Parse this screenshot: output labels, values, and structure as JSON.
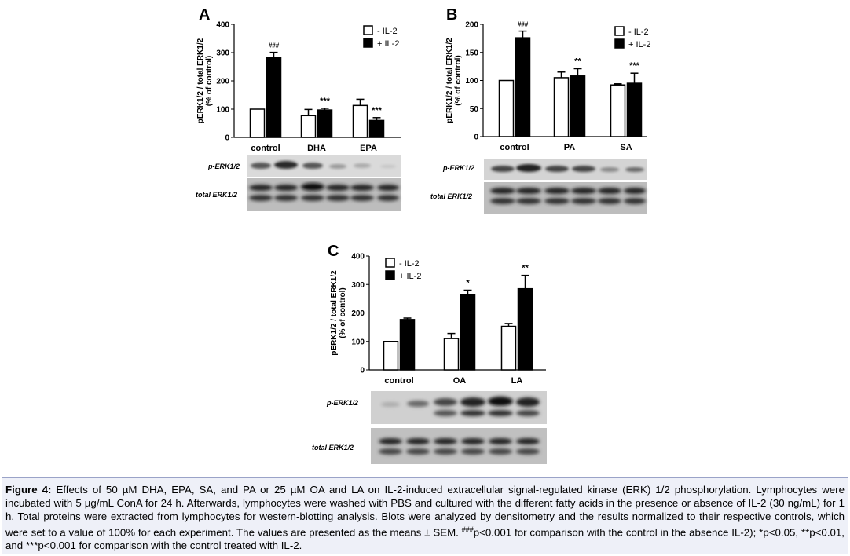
{
  "figure": {
    "legend_minus": "- IL-2",
    "legend_plus": "+ IL-2",
    "blot_labels": {
      "p": "p-ERK1/2",
      "total": "total  ERK1/2"
    }
  },
  "chart_data": [
    {
      "panel": "A",
      "type": "bar",
      "categories": [
        "control",
        "DHA",
        "EPA"
      ],
      "ylabel_line1": "pERK1/2 / total ERK1/2",
      "ylabel_line2": "(% of control)",
      "ylim": [
        0,
        400
      ],
      "yticks": [
        0,
        100,
        200,
        300,
        400
      ],
      "series": [
        {
          "name": "- IL-2",
          "values": [
            100,
            77,
            113
          ],
          "errors": [
            0,
            22,
            22
          ],
          "fill": "#ffffff"
        },
        {
          "name": "+ IL-2",
          "values": [
            283,
            97,
            60
          ],
          "errors": [
            18,
            6,
            10
          ],
          "fill": "#000000"
        }
      ],
      "annotations": [
        {
          "category": 0,
          "series": 1,
          "text": "###"
        },
        {
          "category": 1,
          "series": 1,
          "text": "***"
        },
        {
          "category": 2,
          "series": 1,
          "text": "***"
        }
      ]
    },
    {
      "panel": "B",
      "type": "bar",
      "categories": [
        "control",
        "PA",
        "SA"
      ],
      "ylabel_line1": "pERK1/2 / total ERK1/2",
      "ylabel_line2": "(% of control)",
      "ylim": [
        0,
        200
      ],
      "yticks": [
        0,
        50,
        100,
        150,
        200
      ],
      "series": [
        {
          "name": "- IL-2",
          "values": [
            100,
            105,
            92
          ],
          "errors": [
            0,
            10,
            2
          ],
          "fill": "#ffffff"
        },
        {
          "name": "+ IL-2",
          "values": [
            176,
            108,
            95
          ],
          "errors": [
            12,
            13,
            18
          ],
          "fill": "#000000"
        }
      ],
      "annotations": [
        {
          "category": 0,
          "series": 1,
          "text": "###"
        },
        {
          "category": 1,
          "series": 1,
          "text": "**"
        },
        {
          "category": 2,
          "series": 1,
          "text": "***"
        }
      ]
    },
    {
      "panel": "C",
      "type": "bar",
      "categories": [
        "control",
        "OA",
        "LA"
      ],
      "ylabel_line1": "pERK1/2 / total ERK1/2",
      "ylabel_line2": "(% of control)",
      "ylim": [
        0,
        400
      ],
      "yticks": [
        0,
        100,
        200,
        300,
        400
      ],
      "series": [
        {
          "name": "- IL-2",
          "values": [
            100,
            110,
            153
          ],
          "errors": [
            0,
            18,
            10
          ],
          "fill": "#ffffff"
        },
        {
          "name": "+ IL-2",
          "values": [
            177,
            265,
            285
          ],
          "errors": [
            5,
            15,
            47
          ],
          "fill": "#000000"
        }
      ],
      "annotations": [
        {
          "category": 1,
          "series": 1,
          "text": "*"
        },
        {
          "category": 2,
          "series": 1,
          "text": "**"
        }
      ]
    }
  ],
  "caption": {
    "label": "Figure 4:",
    "text": " Effects of 50 µM DHA, EPA, SA, and PA or 25 µM OA and LA on IL-2-induced extracellular signal-regulated kinase (ERK) 1/2 phosphorylation. Lymphocytes were incubated with 5 µg/mL ConA for 24 h. Afterwards, lymphocytes were washed with PBS and cultured with the different fatty acids in the presence or absence of IL-2 (30 ng/mL) for 1 h. Total proteins were extracted from lymphocytes for western-blotting analysis. Blots were analyzed by densitometry and the results normalized to their respective controls, which were set to a value of 100% for each experiment. The values are presented as the means ± SEM. ",
    "sup": "###",
    "tail": "p<0.001 for comparison with the control in the absence IL-2); *p<0.05, **p<0.01, and ***p<0.001 for comparison with the control treated with IL-2."
  }
}
